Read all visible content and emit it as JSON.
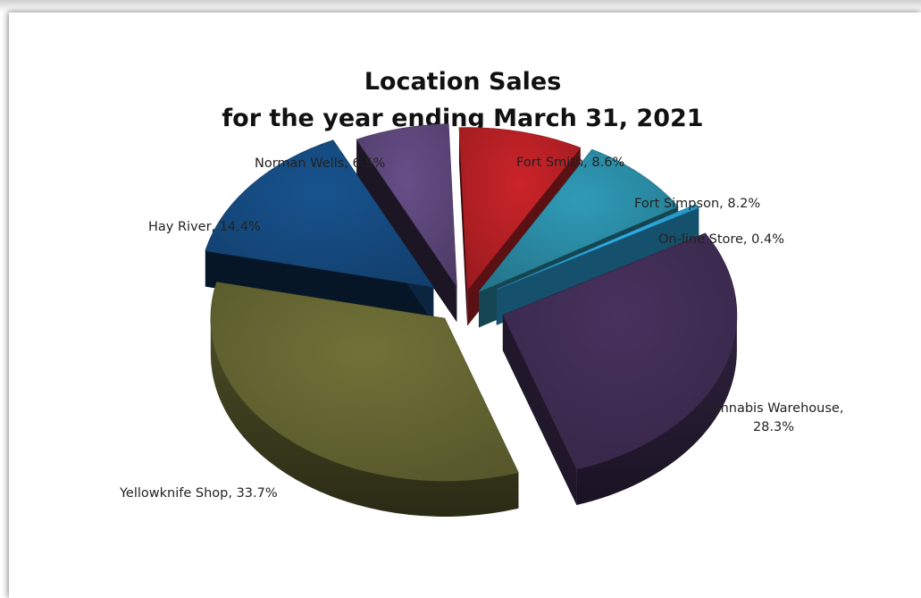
{
  "chart_data": {
    "type": "pie",
    "title_lines": [
      "Location Sales",
      "for the year ending March 31, 2021"
    ],
    "series": [
      {
        "label": "Fort Smith",
        "value": 8.6,
        "display": "Fort Smith, 8.6%",
        "color": "#b52025"
      },
      {
        "label": "Fort Simpson",
        "value": 8.2,
        "display": "Fort Simpson, 8.2%",
        "color": "#2a8aa3"
      },
      {
        "label": "On-line Store",
        "value": 0.4,
        "display": "On-line Store, 0.4%",
        "color": "#2aa2d8"
      },
      {
        "label": "Cannabis Warehouse",
        "value": 28.3,
        "display_lines": [
          "Cannabis Warehouse,",
          "28.3%"
        ],
        "color": "#3f2d54"
      },
      {
        "label": "Yellowknife Shop",
        "value": 33.7,
        "display": "Yellowknife Shop, 33.7%",
        "color": "#656632"
      },
      {
        "label": "Hay River",
        "value": 14.4,
        "display": "Hay River, 14.4%",
        "color": "#154a80"
      },
      {
        "label": "Norman Wells",
        "value": 6.5,
        "display": "Norman Wells, 6.5%",
        "color": "#5c4679"
      }
    ],
    "style": "3d-exploded-pie",
    "legend": "none"
  }
}
